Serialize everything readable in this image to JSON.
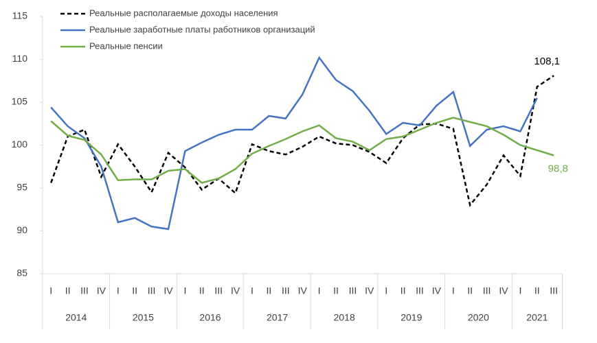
{
  "chart_data": {
    "type": "line",
    "categories": [
      "I",
      "II",
      "III",
      "IV",
      "I",
      "II",
      "III",
      "IV",
      "I",
      "II",
      "III",
      "IV",
      "I",
      "II",
      "III",
      "IV",
      "I",
      "II",
      "III",
      "IV",
      "I",
      "II",
      "III",
      "IV",
      "I",
      "II",
      "III",
      "IV",
      "I",
      "II",
      "III"
    ],
    "years": [
      "2014",
      "2015",
      "2016",
      "2017",
      "2018",
      "2019",
      "2020",
      "2021"
    ],
    "ylim": [
      85,
      115
    ],
    "yticks": [
      85,
      90,
      95,
      100,
      105,
      110,
      115
    ],
    "grid": false,
    "legend": "top-left",
    "series": [
      {
        "name": "Реальные располагаемые доходы населения",
        "color": "#000000",
        "dash": true,
        "values": [
          95.6,
          101.0,
          101.8,
          96.3,
          100.1,
          97.5,
          94.5,
          99.1,
          97.4,
          94.8,
          96.1,
          94.4,
          100.1,
          99.3,
          98.9,
          99.8,
          101.0,
          100.2,
          100.0,
          99.2,
          97.9,
          100.8,
          102.4,
          102.5,
          101.9,
          93.0,
          95.4,
          98.8,
          96.4,
          106.8,
          108.1
        ],
        "value_labels": [
          null,
          null,
          null,
          null,
          null,
          null,
          null,
          null,
          null,
          null,
          null,
          null,
          null,
          null,
          null,
          null,
          null,
          null,
          null,
          null,
          null,
          null,
          null,
          null,
          null,
          null,
          null,
          null,
          null,
          null,
          "108,1"
        ]
      },
      {
        "name": "Реальные заработные платы работников организаций",
        "color": "#4472c4",
        "dash": false,
        "values": [
          104.4,
          102.2,
          100.8,
          97.5,
          91.0,
          91.5,
          90.5,
          90.2,
          99.3,
          100.3,
          101.2,
          101.8,
          101.8,
          103.4,
          103.1,
          105.9,
          110.2,
          107.6,
          106.3,
          104.0,
          101.3,
          102.6,
          102.3,
          104.6,
          106.2,
          99.9,
          101.8,
          102.2,
          101.6,
          105.5,
          null
        ]
      },
      {
        "name": "Реальные пенсии",
        "color": "#70ad47",
        "dash": false,
        "values": [
          102.8,
          101.1,
          100.6,
          98.9,
          95.9,
          96.0,
          96.0,
          97.0,
          97.2,
          95.6,
          96.1,
          97.2,
          99.0,
          99.9,
          100.7,
          101.6,
          102.3,
          100.8,
          100.4,
          99.4,
          100.7,
          101.0,
          101.8,
          102.6,
          103.2,
          102.7,
          102.2,
          101.2,
          100.0,
          99.4,
          98.8
        ],
        "value_labels": [
          null,
          null,
          null,
          null,
          null,
          null,
          null,
          null,
          null,
          null,
          null,
          null,
          null,
          null,
          null,
          null,
          null,
          null,
          null,
          null,
          null,
          null,
          null,
          null,
          null,
          null,
          null,
          null,
          null,
          null,
          "98,8"
        ]
      }
    ]
  }
}
